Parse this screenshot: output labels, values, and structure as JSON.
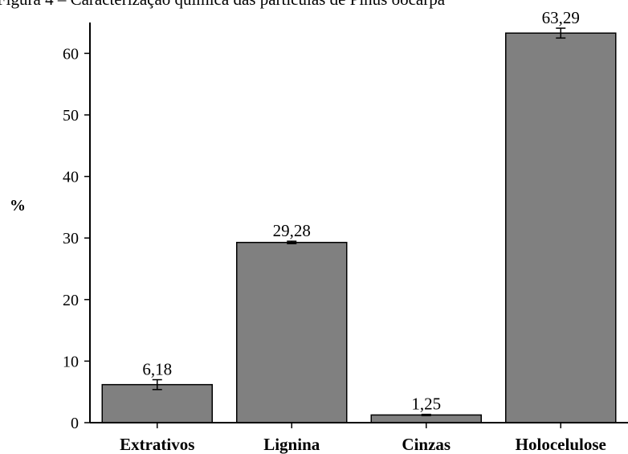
{
  "header_text": "Figura 4 – Caracterização química das partículas de Pinus oocarpa",
  "chart_data": {
    "type": "bar",
    "title": "",
    "xlabel": "",
    "ylabel": "%",
    "categories": [
      "Extrativos",
      "Lignina",
      "Cinzas",
      "Holocelulose"
    ],
    "values": [
      6.18,
      29.28,
      1.25,
      63.29
    ],
    "value_labels": [
      "6,18",
      "29,28",
      "1,25",
      "63,29"
    ],
    "error": [
      0.8,
      0.2,
      0.1,
      0.8
    ],
    "ylim": [
      0,
      65
    ],
    "yticks": [
      0,
      10,
      20,
      30,
      40,
      50,
      60
    ],
    "grid": false,
    "legend": "none",
    "bar_color": "#808080",
    "bar_edge_color": "#000000"
  }
}
